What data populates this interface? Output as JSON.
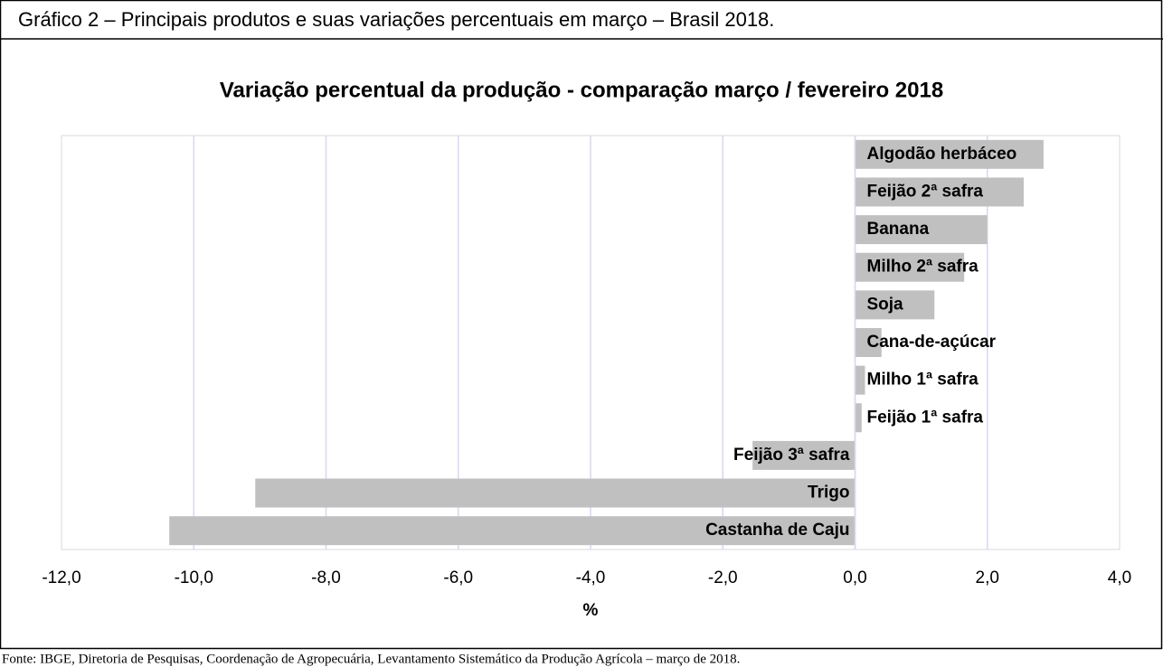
{
  "header": "Gráfico 2 – Principais produtos e suas variações percentuais em março – Brasil 2018.",
  "source": "Fonte: IBGE, Diretoria de Pesquisas, Coordenação de Agropecuária, Levantamento Sistemático da Produção Agrícola – março de 2018.",
  "chart_data": {
    "type": "barh",
    "title": "Variação percentual da produção - comparação março / fevereiro 2018",
    "categories": [
      "Algodão herbáceo",
      "Feijão 2ª safra",
      "Banana",
      "Milho 2ª safra",
      "Soja",
      "Cana-de-açúcar",
      "Milho 1ª safra",
      "Feijão 1ª safra",
      "Feijão 3ª safra",
      "Trigo",
      "Castanha de Caju"
    ],
    "values": [
      2.85,
      2.55,
      2.0,
      1.65,
      1.2,
      0.4,
      0.15,
      0.1,
      -1.55,
      -9.07,
      -10.37
    ],
    "color": "#c0c0c0",
    "xlabel": "%",
    "xlim": [
      -12,
      4
    ],
    "xticks": [
      {
        "value": -12,
        "label": "-12,0"
      },
      {
        "value": -10,
        "label": "-10,0"
      },
      {
        "value": -8,
        "label": "-8,0"
      },
      {
        "value": -6,
        "label": "-6,0"
      },
      {
        "value": -4,
        "label": "-4,0"
      },
      {
        "value": -2,
        "label": "-2,0"
      },
      {
        "value": 0,
        "label": "0,0"
      },
      {
        "value": 2,
        "label": "2,0"
      },
      {
        "value": 4,
        "label": "4,0"
      }
    ],
    "grid": true
  }
}
